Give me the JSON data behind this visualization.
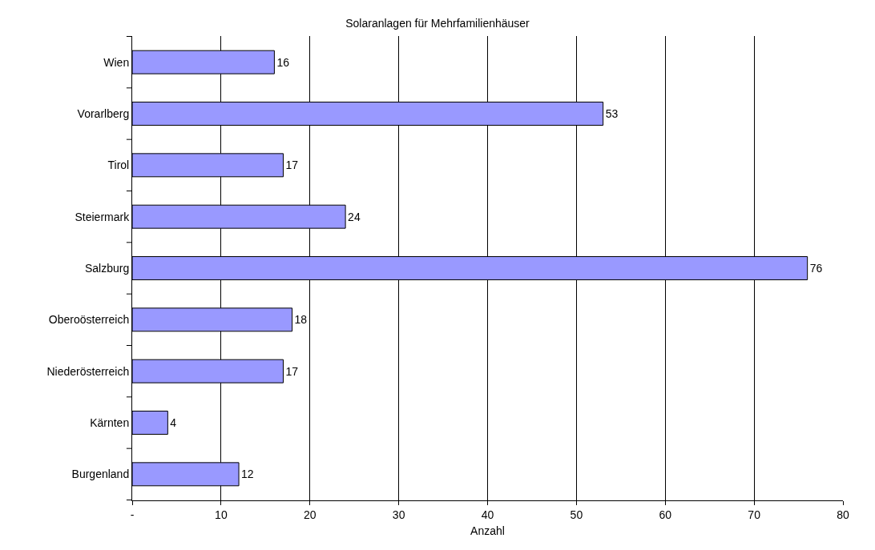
{
  "chart_data": {
    "type": "bar",
    "orientation": "horizontal",
    "title": "Solaranlagen für Mehrfamilienhäuser",
    "xlabel": "Anzahl",
    "categories": [
      "Wien",
      "Vorarlberg",
      "Tirol",
      "Steiermark",
      "Salzburg",
      "Oberoösterreich",
      "Niederösterreich",
      "Kärnten",
      "Burgenland"
    ],
    "values": [
      16,
      53,
      17,
      24,
      76,
      18,
      17,
      4,
      12
    ],
    "color": "#9999ff",
    "xlim": [
      0,
      80
    ],
    "xticks": [
      {
        "value": 0,
        "label": "-"
      },
      10,
      20,
      30,
      40,
      50,
      60,
      70,
      80
    ],
    "grid": "x",
    "data_labels": true
  }
}
